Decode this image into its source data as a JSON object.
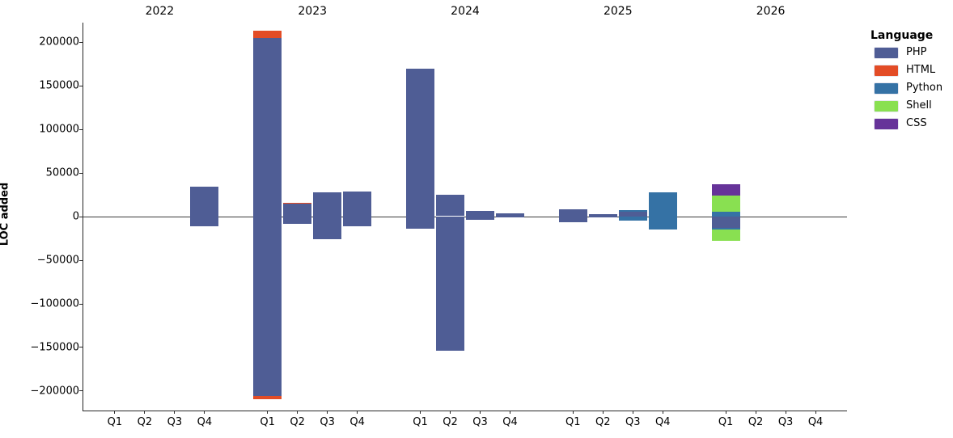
{
  "chart_data": {
    "type": "bar",
    "stacked": true,
    "title": "",
    "ylabel": "LOC added",
    "xlabel": "",
    "grid": false,
    "zero_line": true,
    "ylim": [
      -222700,
      221800
    ],
    "yticks": [
      {
        "value": 200000,
        "label": "200000"
      },
      {
        "value": 150000,
        "label": "150000"
      },
      {
        "value": 100000,
        "label": "100000"
      },
      {
        "value": 50000,
        "label": "50000"
      },
      {
        "value": 0,
        "label": "0"
      },
      {
        "value": -50000,
        "label": "−50000"
      },
      {
        "value": -100000,
        "label": "−100000"
      },
      {
        "value": -150000,
        "label": "−150000"
      },
      {
        "value": -200000,
        "label": "−200000"
      }
    ],
    "stack_order": [
      "PHP",
      "HTML",
      "Python",
      "Shell",
      "CSS"
    ],
    "legend": {
      "title": "Language",
      "position": "right",
      "entries": [
        {
          "label": "PHP",
          "color": "#4F5D95"
        },
        {
          "label": "HTML",
          "color": "#E34C26"
        },
        {
          "label": "Python",
          "color": "#3572A5"
        },
        {
          "label": "Shell",
          "color": "#89E051"
        },
        {
          "label": "CSS",
          "color": "#663399"
        }
      ]
    },
    "groups": [
      {
        "year": "2022",
        "quarters": [
          {
            "label": "Q1",
            "pos": {},
            "neg": {}
          },
          {
            "label": "Q2",
            "pos": {},
            "neg": {}
          },
          {
            "label": "Q3",
            "pos": {},
            "neg": {}
          },
          {
            "label": "Q4",
            "pos": {
              "PHP": 34000
            },
            "neg": {
              "PHP": -12000
            }
          }
        ]
      },
      {
        "year": "2023",
        "quarters": [
          {
            "label": "Q1",
            "pos": {
              "PHP": 204000,
              "HTML": 8400
            },
            "neg": {
              "PHP": -206000,
              "HTML": -3700
            }
          },
          {
            "label": "Q2",
            "pos": {
              "PHP": 14000,
              "HTML": 1000
            },
            "neg": {
              "PHP": -8500
            }
          },
          {
            "label": "Q3",
            "pos": {
              "PHP": 27000
            },
            "neg": {
              "PHP": -26000
            }
          },
          {
            "label": "Q4",
            "pos": {
              "PHP": 28500
            },
            "neg": {
              "PHP": -11500
            }
          }
        ]
      },
      {
        "year": "2024",
        "quarters": [
          {
            "label": "Q1",
            "pos": {
              "PHP": 169000
            },
            "neg": {
              "PHP": -14000
            }
          },
          {
            "label": "Q2",
            "pos": {
              "PHP": 24800
            },
            "neg": {
              "PHP": -154000
            }
          },
          {
            "label": "Q3",
            "pos": {
              "PHP": 6300
            },
            "neg": {
              "PHP": -4400
            }
          },
          {
            "label": "Q4",
            "pos": {
              "PHP": 3500
            },
            "neg": {
              "PHP": -500
            }
          }
        ]
      },
      {
        "year": "2025",
        "quarters": [
          {
            "label": "Q1",
            "pos": {
              "PHP": 8000
            },
            "neg": {
              "PHP": -7000
            }
          },
          {
            "label": "Q2",
            "pos": {
              "PHP": 2500
            },
            "neg": {
              "PHP": -700
            }
          },
          {
            "label": "Q3",
            "pos": {
              "PHP": 5000,
              "Python": 2000
            },
            "neg": {
              "Python": -5000
            }
          },
          {
            "label": "Q4",
            "pos": {
              "Python": 27500
            },
            "neg": {
              "Python": -15300
            }
          }
        ]
      },
      {
        "year": "2026",
        "quarters": [
          {
            "label": "Q1",
            "pos": {
              "Python": 5000,
              "Shell": 19000,
              "CSS": 12500
            },
            "neg": {
              "PHP": -13000,
              "Python": -2000,
              "Shell": -13500
            }
          },
          {
            "label": "Q2",
            "pos": {},
            "neg": {}
          },
          {
            "label": "Q3",
            "pos": {},
            "neg": {}
          },
          {
            "label": "Q4",
            "pos": {},
            "neg": {}
          }
        ]
      }
    ]
  }
}
